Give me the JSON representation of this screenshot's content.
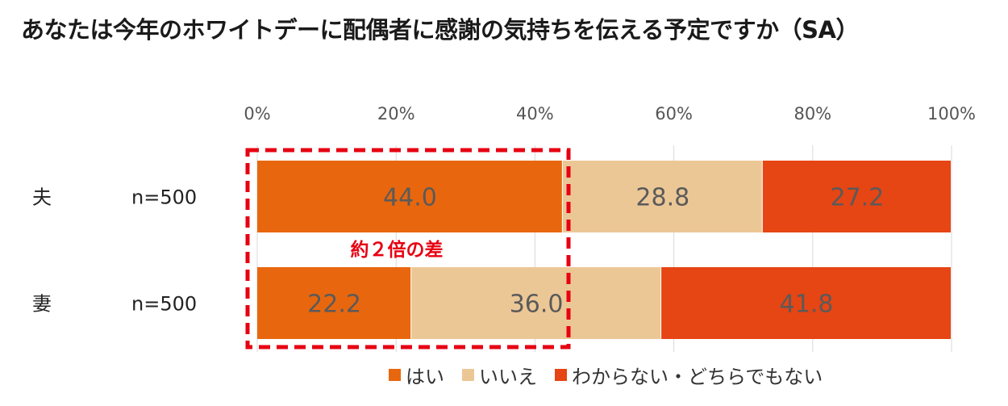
{
  "title": "あなたは今年のホワイトデーに配偶者に感謝の気持ちを伝える予定ですか（SA）",
  "chart_data": {
    "type": "bar",
    "orientation": "horizontal",
    "stacked": true,
    "percent": true,
    "title": "あなたは今年のホワイトデーに配偶者に感謝の気持ちを伝える予定ですか（SA）",
    "categories": [
      "夫",
      "妻"
    ],
    "sample_sizes": [
      "n=500",
      "n=500"
    ],
    "x_ticks": [
      "0%",
      "20%",
      "40%",
      "60%",
      "80%",
      "100%"
    ],
    "xlim": [
      0,
      100
    ],
    "series": [
      {
        "name": "はい",
        "color": "#e8670e",
        "values": [
          44.0,
          22.2
        ],
        "labels": [
          "44.0",
          "22.2"
        ]
      },
      {
        "name": "いいえ",
        "color": "#ecc796",
        "values": [
          28.8,
          36.0
        ],
        "labels": [
          "28.8",
          "36.0"
        ]
      },
      {
        "name": "わからない・どちらでもない",
        "color": "#e64514",
        "values": [
          27.2,
          41.8
        ],
        "labels": [
          "27.2",
          "41.8"
        ]
      }
    ],
    "annotation": {
      "text": "約２倍の差",
      "color": "#e60012"
    },
    "legend_position": "bottom"
  }
}
